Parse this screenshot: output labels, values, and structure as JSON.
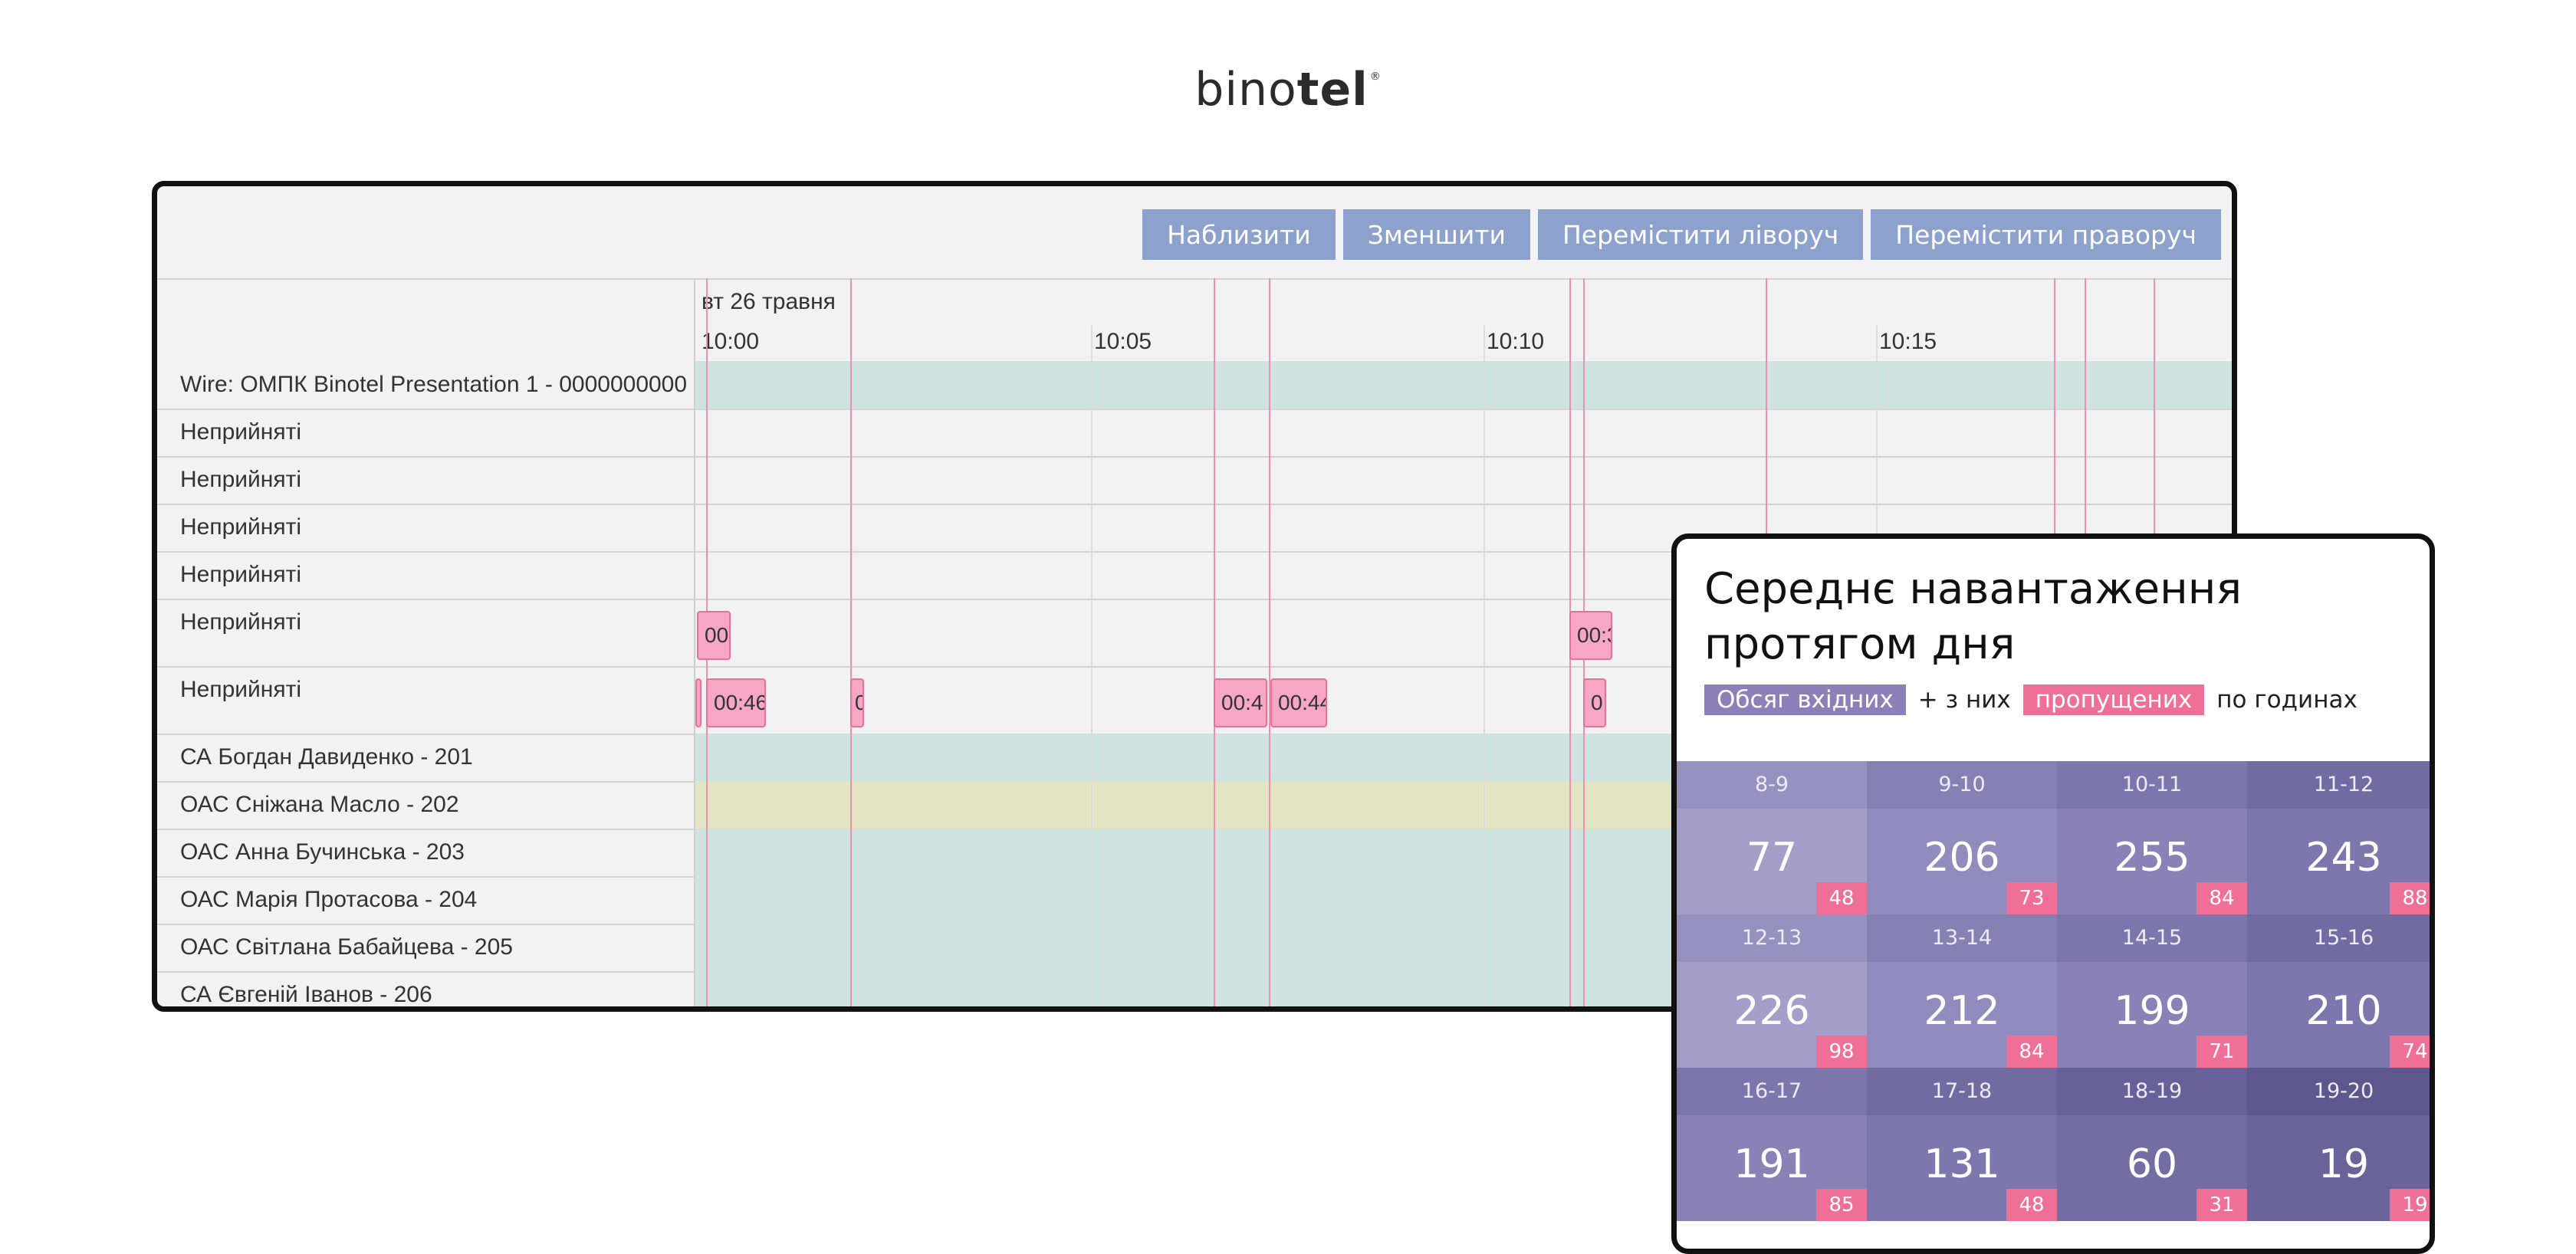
{
  "logo": {
    "light": "bino",
    "bold": "tel",
    "reg": "®"
  },
  "timeline": {
    "buttons": [
      "Наблизити",
      "Зменшити",
      "Перемістити ліворуч",
      "Перемістити праворуч"
    ],
    "date": "вт 26 травня",
    "times": [
      "10:00",
      "10:05",
      "10:10",
      "10:15"
    ],
    "rows": [
      {
        "label": "Wire: ОМПК Binotel Presentation 1 - 0000000000",
        "fill": "#cfe3e0"
      },
      {
        "label": "Неприйняті",
        "fill": ""
      },
      {
        "label": "Неприйняті",
        "fill": ""
      },
      {
        "label": "Неприйняті",
        "fill": ""
      },
      {
        "label": "Неприйняті",
        "fill": ""
      },
      {
        "label": "Неприйняті",
        "fill": ""
      },
      {
        "label": "Неприйняті",
        "fill": ""
      },
      {
        "label": "СА Богдан Давиденко - 201",
        "fill": "#cfe3e0"
      },
      {
        "label": "ОАС Сніжана Масло - 202",
        "fill": "#e3e4c3"
      },
      {
        "label": "ОАС Анна Бучинська - 203",
        "fill": "#cfe3e0"
      },
      {
        "label": "ОАС Марія Протасова - 204",
        "fill": "#cfe3e0"
      },
      {
        "label": "ОАС Світлана Бабайцева - 205",
        "fill": "#cfe3e0"
      },
      {
        "label": "СА Євгеній Іванов - 206",
        "fill": "#cfe3e0"
      }
    ],
    "blocks": {
      "row6": [
        "00",
        "00:3"
      ],
      "row7": [
        "",
        "00:46",
        "0",
        "00:4",
        "00:44",
        "0"
      ]
    }
  },
  "load": {
    "title": "Середнє навантаження протягом дня",
    "legend": {
      "incoming": "Обсяг вхідних",
      "plus": "+ з них",
      "missed": "пропущених",
      "per": "по годинах"
    },
    "cells": [
      {
        "hour": "8-9",
        "value": "77",
        "missed": "48",
        "color": "#a49ec9",
        "hdr": "#9691bf"
      },
      {
        "hour": "9-10",
        "value": "206",
        "missed": "73",
        "color": "#928bbd",
        "hdr": "#8680b3"
      },
      {
        "hour": "10-11",
        "value": "255",
        "missed": "84",
        "color": "#8a82b7",
        "hdr": "#7d76ad"
      },
      {
        "hour": "11-12",
        "value": "243",
        "missed": "88",
        "color": "#7e77ad",
        "hdr": "#726ba2"
      },
      {
        "hour": "12-13",
        "value": "226",
        "missed": "98",
        "color": "#a49ec9",
        "hdr": "#9691bf"
      },
      {
        "hour": "13-14",
        "value": "212",
        "missed": "84",
        "color": "#928bbd",
        "hdr": "#8680b3"
      },
      {
        "hour": "14-15",
        "value": "199",
        "missed": "71",
        "color": "#8a82b7",
        "hdr": "#7d76ad"
      },
      {
        "hour": "15-16",
        "value": "210",
        "missed": "74",
        "color": "#7e77ad",
        "hdr": "#726ba2"
      },
      {
        "hour": "16-17",
        "value": "191",
        "missed": "85",
        "color": "#8a82b7",
        "hdr": "#7d76ad"
      },
      {
        "hour": "17-18",
        "value": "131",
        "missed": "48",
        "color": "#7e77ad",
        "hdr": "#726ba2"
      },
      {
        "hour": "18-19",
        "value": "60",
        "missed": "31",
        "color": "#746da4",
        "hdr": "#686199"
      },
      {
        "hour": "19-20",
        "value": "19",
        "missed": "19",
        "color": "#6a6399",
        "hdr": "#5e578e"
      }
    ]
  }
}
